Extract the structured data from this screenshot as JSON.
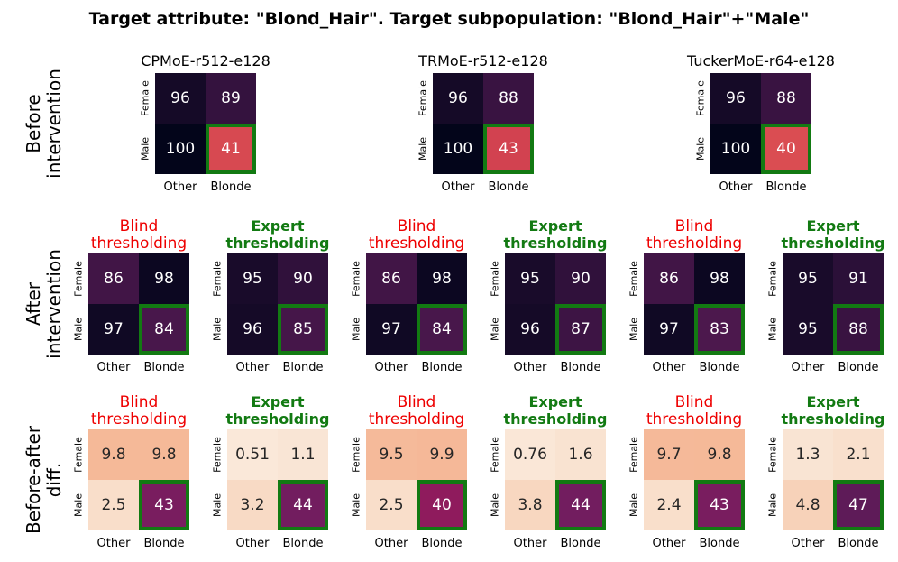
{
  "figure_title": "Target attribute: \"Blond_Hair\". Target subpopulation: \"Blond_Hair\"+\"Male\"",
  "row_labels": [
    [
      "Before",
      "intervention"
    ],
    [
      "After",
      "intervention"
    ],
    [
      "Before-after",
      "diff."
    ]
  ],
  "colors": {
    "highlight_box": "#127a12",
    "blind_title": "#ee0000",
    "expert_title": "#127a12",
    "cmap": [
      "#faebdd",
      "#f6c4a4",
      "#f3a07e",
      "#e05654",
      "#c1294a",
      "#a11a5b",
      "#6b1e60",
      "#3b1443",
      "#03051a"
    ]
  },
  "chart_data": {
    "type": "heatmap",
    "x_labels": [
      "Other",
      "Blonde"
    ],
    "y_labels": [
      "Female",
      "Male"
    ],
    "highlight_cell": "Male/Blonde",
    "panels": [
      {
        "row": 0,
        "col": 0,
        "title": "CPMoE-r512-e128",
        "title_style": "model",
        "cmap_range": [
          0,
          100
        ],
        "values": [
          [
            96,
            89
          ],
          [
            100,
            41
          ]
        ],
        "labels": [
          [
            "96",
            "89"
          ],
          [
            "100",
            "41"
          ]
        ]
      },
      {
        "row": 0,
        "col": 1,
        "title": "TRMoE-r512-e128",
        "title_style": "model",
        "cmap_range": [
          0,
          100
        ],
        "values": [
          [
            96,
            88
          ],
          [
            100,
            43
          ]
        ],
        "labels": [
          [
            "96",
            "88"
          ],
          [
            "100",
            "43"
          ]
        ]
      },
      {
        "row": 0,
        "col": 2,
        "title": "TuckerMoE-r64-e128",
        "title_style": "model",
        "cmap_range": [
          0,
          100
        ],
        "values": [
          [
            96,
            88
          ],
          [
            100,
            40
          ]
        ],
        "labels": [
          [
            "96",
            "88"
          ],
          [
            "100",
            "40"
          ]
        ]
      },
      {
        "row": 1,
        "col": 0,
        "title": [
          "Blind",
          "thresholding"
        ],
        "title_style": "blind",
        "cmap_range": [
          0,
          100
        ],
        "values": [
          [
            86,
            98
          ],
          [
            97,
            84
          ]
        ],
        "labels": [
          [
            "86",
            "98"
          ],
          [
            "97",
            "84"
          ]
        ]
      },
      {
        "row": 1,
        "col": 1,
        "title": [
          "Expert",
          "thresholding"
        ],
        "title_style": "expert",
        "cmap_range": [
          0,
          100
        ],
        "values": [
          [
            95,
            90
          ],
          [
            96,
            85
          ]
        ],
        "labels": [
          [
            "95",
            "90"
          ],
          [
            "96",
            "85"
          ]
        ]
      },
      {
        "row": 1,
        "col": 2,
        "title": [
          "Blind",
          "thresholding"
        ],
        "title_style": "blind",
        "cmap_range": [
          0,
          100
        ],
        "values": [
          [
            86,
            98
          ],
          [
            97,
            84
          ]
        ],
        "labels": [
          [
            "86",
            "98"
          ],
          [
            "97",
            "84"
          ]
        ]
      },
      {
        "row": 1,
        "col": 3,
        "title": [
          "Expert",
          "thresholding"
        ],
        "title_style": "expert",
        "cmap_range": [
          0,
          100
        ],
        "values": [
          [
            95,
            90
          ],
          [
            96,
            87
          ]
        ],
        "labels": [
          [
            "95",
            "90"
          ],
          [
            "96",
            "87"
          ]
        ]
      },
      {
        "row": 1,
        "col": 4,
        "title": [
          "Blind",
          "thresholding"
        ],
        "title_style": "blind",
        "cmap_range": [
          0,
          100
        ],
        "values": [
          [
            86,
            98
          ],
          [
            97,
            83
          ]
        ],
        "labels": [
          [
            "86",
            "98"
          ],
          [
            "97",
            "83"
          ]
        ]
      },
      {
        "row": 1,
        "col": 5,
        "title": [
          "Expert",
          "thresholding"
        ],
        "title_style": "expert",
        "cmap_range": [
          0,
          100
        ],
        "values": [
          [
            95,
            91
          ],
          [
            95,
            88
          ]
        ],
        "labels": [
          [
            "95",
            "91"
          ],
          [
            "95",
            "88"
          ]
        ]
      },
      {
        "row": 2,
        "col": 0,
        "title": [
          "Blind",
          "thresholding"
        ],
        "title_style": "blind",
        "cmap_range": [
          0,
          60
        ],
        "values": [
          [
            9.8,
            9.8
          ],
          [
            2.5,
            43
          ]
        ],
        "labels": [
          [
            "9.8",
            "9.8"
          ],
          [
            "2.5",
            "43"
          ]
        ]
      },
      {
        "row": 2,
        "col": 1,
        "title": [
          "Expert",
          "thresholding"
        ],
        "title_style": "expert",
        "cmap_range": [
          0,
          60
        ],
        "values": [
          [
            0.51,
            1.1
          ],
          [
            3.2,
            44
          ]
        ],
        "labels": [
          [
            "0.51",
            "1.1"
          ],
          [
            "3.2",
            "44"
          ]
        ]
      },
      {
        "row": 2,
        "col": 2,
        "title": [
          "Blind",
          "thresholding"
        ],
        "title_style": "blind",
        "cmap_range": [
          0,
          60
        ],
        "values": [
          [
            9.5,
            9.9
          ],
          [
            2.5,
            40
          ]
        ],
        "labels": [
          [
            "9.5",
            "9.9"
          ],
          [
            "2.5",
            "40"
          ]
        ]
      },
      {
        "row": 2,
        "col": 3,
        "title": [
          "Expert",
          "thresholding"
        ],
        "title_style": "expert",
        "cmap_range": [
          0,
          60
        ],
        "values": [
          [
            0.76,
            1.6
          ],
          [
            3.8,
            44
          ]
        ],
        "labels": [
          [
            "0.76",
            "1.6"
          ],
          [
            "3.8",
            "44"
          ]
        ]
      },
      {
        "row": 2,
        "col": 4,
        "title": [
          "Blind",
          "thresholding"
        ],
        "title_style": "blind",
        "cmap_range": [
          0,
          60
        ],
        "values": [
          [
            9.7,
            9.8
          ],
          [
            2.4,
            43
          ]
        ],
        "labels": [
          [
            "9.7",
            "9.8"
          ],
          [
            "2.4",
            "43"
          ]
        ]
      },
      {
        "row": 2,
        "col": 5,
        "title": [
          "Expert",
          "thresholding"
        ],
        "title_style": "expert",
        "cmap_range": [
          0,
          60
        ],
        "values": [
          [
            1.3,
            2.1
          ],
          [
            4.8,
            47
          ]
        ],
        "labels": [
          [
            "1.3",
            "2.1"
          ],
          [
            "4.8",
            "47"
          ]
        ]
      }
    ]
  }
}
